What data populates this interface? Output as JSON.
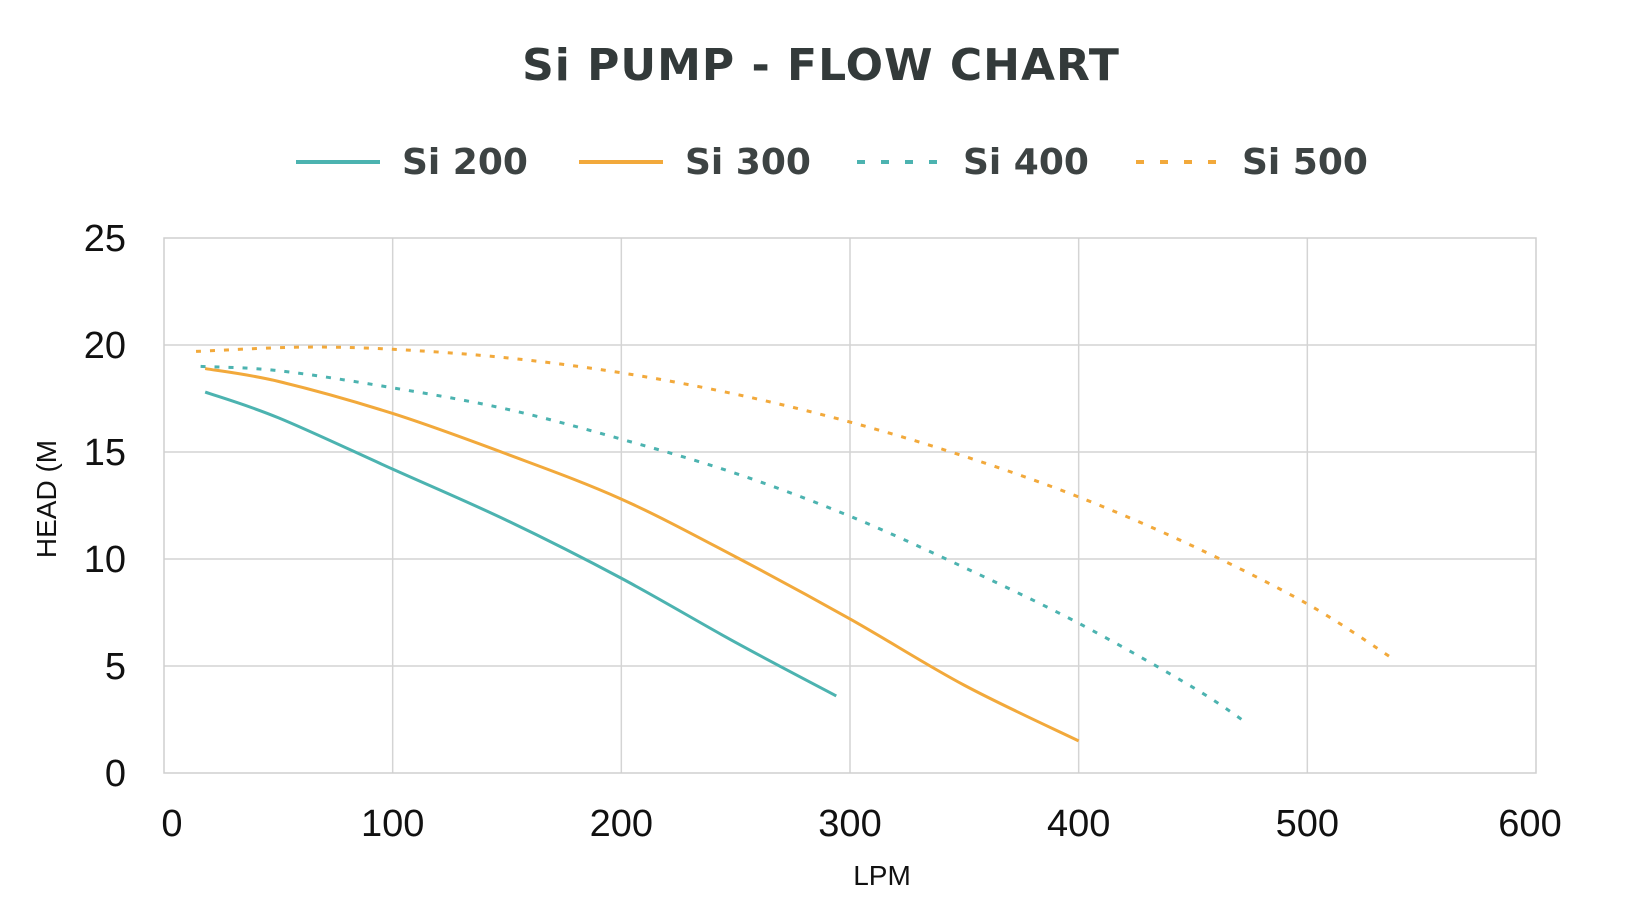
{
  "chart_data": {
    "type": "line",
    "title": "Si PUMP - FLOW CHART",
    "xlabel": "LPM",
    "ylabel": "HEAD (M",
    "xlim": [
      0,
      600
    ],
    "ylim": [
      0,
      25
    ],
    "xticks": [
      0,
      100,
      200,
      300,
      400,
      500,
      600
    ],
    "yticks": [
      0,
      5,
      10,
      15,
      20,
      25
    ],
    "grid": true,
    "legend_position": "top",
    "series": [
      {
        "name": "Si 200",
        "color": "#4cb3b0",
        "style": "solid",
        "x": [
          18,
          50,
          100,
          150,
          200,
          250,
          294
        ],
        "y": [
          17.8,
          16.6,
          14.2,
          11.8,
          9.1,
          6.1,
          3.6
        ]
      },
      {
        "name": "Si 300",
        "color": "#f2a93b",
        "style": "solid",
        "x": [
          18,
          50,
          100,
          150,
          200,
          250,
          300,
          350,
          400
        ],
        "y": [
          18.9,
          18.3,
          16.8,
          14.9,
          12.8,
          10.1,
          7.2,
          4.1,
          1.5
        ]
      },
      {
        "name": "Si 400",
        "color": "#4cb3b0",
        "style": "dotted",
        "x": [
          16,
          50,
          100,
          150,
          200,
          250,
          300,
          350,
          400,
          450,
          474
        ],
        "y": [
          19.0,
          18.8,
          18.0,
          17.0,
          15.6,
          14.0,
          12.0,
          9.6,
          7.0,
          4.0,
          2.3
        ]
      },
      {
        "name": "Si 500",
        "color": "#f2a93b",
        "style": "dotted",
        "x": [
          14,
          60,
          100,
          150,
          200,
          250,
          300,
          350,
          400,
          450,
          500,
          538
        ],
        "y": [
          19.7,
          19.9,
          19.8,
          19.4,
          18.7,
          17.7,
          16.4,
          14.8,
          12.9,
          10.6,
          7.9,
          5.3
        ]
      }
    ]
  }
}
